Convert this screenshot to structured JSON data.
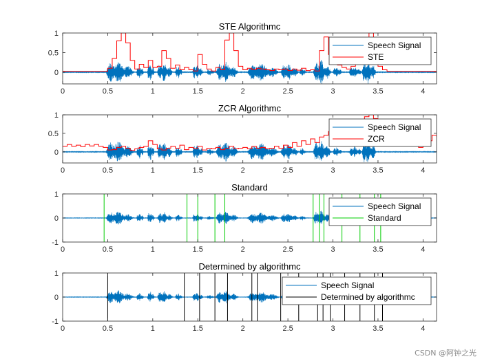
{
  "figure": {
    "watermark": "CSDN @阿钟之光"
  },
  "chart_data": [
    {
      "type": "line",
      "title": "STE Algorithmc",
      "xlim": [
        0,
        4.15
      ],
      "ylim": [
        -0.3,
        1
      ],
      "xticks": [
        0,
        0.5,
        1,
        1.5,
        2,
        2.5,
        3,
        3.5,
        4
      ],
      "xticklabels": [
        "0",
        "0.5",
        "1",
        "1.5",
        "2",
        "2.5",
        "3",
        "3.5",
        "4"
      ],
      "yticks": [
        0,
        0.5,
        1
      ],
      "yticklabels": [
        "0",
        "0.5",
        "1"
      ],
      "legend": {
        "location": "top-right",
        "entries": [
          "Speech Signal",
          "STE"
        ]
      },
      "series": [
        {
          "name": "Speech Signal",
          "kind": "waveform",
          "color": "#0072BD"
        },
        {
          "name": "STE",
          "kind": "stairs",
          "color": "#FF0000",
          "points": [
            [
              0,
              0.02
            ],
            [
              0.45,
              0.02
            ],
            [
              0.5,
              0.1
            ],
            [
              0.55,
              0.35
            ],
            [
              0.6,
              0.8
            ],
            [
              0.65,
              1.0
            ],
            [
              0.7,
              0.75
            ],
            [
              0.75,
              0.3
            ],
            [
              0.8,
              0.08
            ],
            [
              0.85,
              0.2
            ],
            [
              0.9,
              0.12
            ],
            [
              0.95,
              0.3
            ],
            [
              1.0,
              0.12
            ],
            [
              1.05,
              0.15
            ],
            [
              1.1,
              0.55
            ],
            [
              1.15,
              0.35
            ],
            [
              1.2,
              0.1
            ],
            [
              1.25,
              0.18
            ],
            [
              1.3,
              0.06
            ],
            [
              1.35,
              0.12
            ],
            [
              1.4,
              0.06
            ],
            [
              1.45,
              0.03
            ],
            [
              1.5,
              0.45
            ],
            [
              1.55,
              0.2
            ],
            [
              1.6,
              0.08
            ],
            [
              1.65,
              0.03
            ],
            [
              1.7,
              0.12
            ],
            [
              1.75,
              0.06
            ],
            [
              1.8,
              0.82
            ],
            [
              1.85,
              1.0
            ],
            [
              1.9,
              0.55
            ],
            [
              1.95,
              0.15
            ],
            [
              2.0,
              0.06
            ],
            [
              2.05,
              0.1
            ],
            [
              2.1,
              0.06
            ],
            [
              2.15,
              0.1
            ],
            [
              2.2,
              0.08
            ],
            [
              2.25,
              0.06
            ],
            [
              2.3,
              0.04
            ],
            [
              2.35,
              0.08
            ],
            [
              2.4,
              0.06
            ],
            [
              2.45,
              0.08
            ],
            [
              2.5,
              0.04
            ],
            [
              2.55,
              0.08
            ],
            [
              2.6,
              0.05
            ],
            [
              2.65,
              0.1
            ],
            [
              2.7,
              0.04
            ],
            [
              2.75,
              0.06
            ],
            [
              2.8,
              0.03
            ],
            [
              2.85,
              0.55
            ],
            [
              2.9,
              0.9
            ],
            [
              2.95,
              0.45
            ],
            [
              3.0,
              0.3
            ],
            [
              3.05,
              0.18
            ],
            [
              3.1,
              0.12
            ],
            [
              3.15,
              0.08
            ],
            [
              3.2,
              0.15
            ],
            [
              3.25,
              0.35
            ],
            [
              3.3,
              0.55
            ],
            [
              3.35,
              0.85
            ],
            [
              3.4,
              1.0
            ],
            [
              3.45,
              0.4
            ],
            [
              3.5,
              0.15
            ],
            [
              3.55,
              0.06
            ],
            [
              3.6,
              0.02
            ],
            [
              4.15,
              0.02
            ]
          ]
        }
      ]
    },
    {
      "type": "line",
      "title": "ZCR Algorithmc",
      "xlim": [
        0,
        4.15
      ],
      "ylim": [
        -0.3,
        1
      ],
      "xticks": [
        0,
        0.5,
        1,
        1.5,
        2,
        2.5,
        3,
        3.5,
        4
      ],
      "xticklabels": [
        "0",
        "0.5",
        "1",
        "1.5",
        "2",
        "2.5",
        "3",
        "3.5",
        "4"
      ],
      "yticks": [
        0,
        0.5,
        1
      ],
      "yticklabels": [
        "0",
        "0.5",
        "1"
      ],
      "legend": {
        "location": "top-right",
        "entries": [
          "Speech Signal",
          "ZCR"
        ]
      },
      "series": [
        {
          "name": "Speech Signal",
          "kind": "waveform",
          "color": "#0072BD"
        },
        {
          "name": "ZCR",
          "kind": "stairs",
          "color": "#FF0000",
          "points": [
            [
              0,
              0.15
            ],
            [
              0.05,
              0.2
            ],
            [
              0.1,
              0.15
            ],
            [
              0.15,
              0.18
            ],
            [
              0.2,
              0.14
            ],
            [
              0.25,
              0.2
            ],
            [
              0.3,
              0.16
            ],
            [
              0.35,
              0.2
            ],
            [
              0.4,
              0.15
            ],
            [
              0.45,
              0.12
            ],
            [
              0.5,
              0.05
            ],
            [
              0.55,
              0.06
            ],
            [
              0.6,
              0.12
            ],
            [
              0.65,
              0.15
            ],
            [
              0.7,
              0.1
            ],
            [
              0.75,
              0.04
            ],
            [
              0.8,
              0.08
            ],
            [
              0.85,
              0.12
            ],
            [
              0.9,
              0.15
            ],
            [
              0.95,
              0.3
            ],
            [
              1.0,
              0.2
            ],
            [
              1.05,
              0.08
            ],
            [
              1.1,
              0.05
            ],
            [
              1.15,
              0.1
            ],
            [
              1.2,
              0.15
            ],
            [
              1.25,
              0.1
            ],
            [
              1.3,
              0.18
            ],
            [
              1.35,
              0.06
            ],
            [
              1.4,
              0.12
            ],
            [
              1.45,
              0.08
            ],
            [
              1.5,
              0.15
            ],
            [
              1.55,
              0.05
            ],
            [
              1.6,
              0.1
            ],
            [
              1.65,
              0.08
            ],
            [
              1.7,
              0.12
            ],
            [
              1.75,
              0.06
            ],
            [
              1.8,
              0.1
            ],
            [
              1.85,
              0.15
            ],
            [
              1.9,
              0.08
            ],
            [
              1.95,
              0.1
            ],
            [
              2.0,
              0.12
            ],
            [
              2.05,
              0.08
            ],
            [
              2.1,
              0.15
            ],
            [
              2.15,
              0.1
            ],
            [
              2.2,
              0.12
            ],
            [
              2.25,
              0.08
            ],
            [
              2.3,
              0.1
            ],
            [
              2.35,
              0.15
            ],
            [
              2.4,
              0.1
            ],
            [
              2.45,
              0.18
            ],
            [
              2.5,
              0.12
            ],
            [
              2.55,
              0.25
            ],
            [
              2.6,
              0.15
            ],
            [
              2.65,
              0.3
            ],
            [
              2.7,
              0.2
            ],
            [
              2.75,
              0.35
            ],
            [
              2.8,
              0.25
            ],
            [
              2.85,
              0.4
            ],
            [
              2.9,
              0.45
            ],
            [
              2.95,
              0.55
            ],
            [
              3.0,
              0.35
            ],
            [
              3.05,
              0.3
            ],
            [
              3.1,
              0.5
            ],
            [
              3.15,
              0.45
            ],
            [
              3.2,
              0.55
            ],
            [
              3.25,
              0.7
            ],
            [
              3.3,
              0.8
            ],
            [
              3.35,
              0.95
            ],
            [
              3.4,
              1.0
            ],
            [
              3.45,
              0.9
            ],
            [
              3.5,
              0.8
            ],
            [
              3.55,
              0.6
            ],
            [
              3.6,
              0.5
            ],
            [
              3.65,
              0.45
            ],
            [
              3.7,
              0.35
            ],
            [
              3.75,
              0.3
            ],
            [
              3.8,
              0.25
            ],
            [
              3.85,
              0.2
            ],
            [
              3.9,
              0.18
            ],
            [
              3.95,
              0.12
            ],
            [
              4.0,
              0.18
            ],
            [
              4.05,
              0.3
            ],
            [
              4.1,
              0.45
            ],
            [
              4.15,
              0.4
            ]
          ]
        }
      ]
    },
    {
      "type": "line",
      "title": "Standard",
      "xlim": [
        0,
        4.15
      ],
      "ylim": [
        -1,
        1
      ],
      "xticks": [
        0,
        0.5,
        1,
        1.5,
        2,
        2.5,
        3,
        3.5,
        4
      ],
      "xticklabels": [
        "0",
        "0.5",
        "1",
        "1.5",
        "2",
        "2.5",
        "3",
        "3.5",
        "4"
      ],
      "yticks": [
        -1,
        0,
        1
      ],
      "yticklabels": [
        "-1",
        "0",
        "1"
      ],
      "legend": {
        "location": "top-right",
        "entries": [
          "Speech Signal",
          "Standard"
        ]
      },
      "series": [
        {
          "name": "Speech Signal",
          "kind": "waveform",
          "color": "#0072BD"
        },
        {
          "name": "Standard",
          "kind": "vlines",
          "color": "#00CC00",
          "x": [
            0.46,
            1.38,
            1.5,
            1.69,
            1.8,
            2.78,
            2.85,
            2.9,
            3.1,
            3.3,
            3.46,
            3.53
          ]
        }
      ]
    },
    {
      "type": "line",
      "title": "Determined by algorithmc",
      "xlim": [
        0,
        4.15
      ],
      "ylim": [
        -1,
        1
      ],
      "xticks": [
        0,
        0.5,
        1,
        1.5,
        2,
        2.5,
        3,
        3.5,
        4
      ],
      "xticklabels": [
        "0",
        "0.5",
        "1",
        "1.5",
        "2",
        "2.5",
        "3",
        "3.5",
        "4"
      ],
      "yticks": [
        -1,
        0,
        1
      ],
      "yticklabels": [
        "-1",
        "0",
        "1"
      ],
      "legend": {
        "location": "top-right",
        "entries": [
          "Speech Signal",
          "Determined by algorithmc"
        ]
      },
      "series": [
        {
          "name": "Speech Signal",
          "kind": "waveform",
          "color": "#0072BD"
        },
        {
          "name": "Determined by algorithmc",
          "kind": "vlines",
          "color": "#000000",
          "x": [
            0.5,
            1.35,
            1.52,
            1.69,
            1.83,
            2.1,
            2.16,
            2.42,
            2.62,
            2.83,
            2.89,
            2.97,
            3.13,
            3.3,
            3.46,
            3.55
          ]
        }
      ]
    }
  ]
}
